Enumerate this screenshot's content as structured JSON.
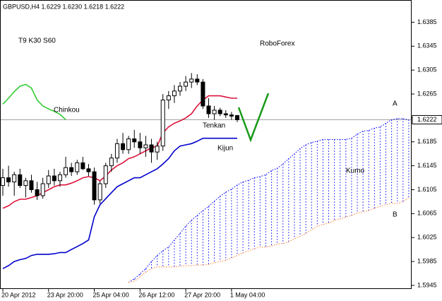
{
  "chart_data": {
    "type": "candlestick",
    "title": "GBPUSD,H4  1.6229 1.6230 1.6218 1.6222",
    "annotations": [
      "T9 K30 S60",
      "RoboForex",
      "Kumo"
    ],
    "current_price": 1.6222,
    "ylim": [
      1.5939,
      1.6421
    ],
    "yticks": [
      1.6385,
      1.6345,
      1.6305,
      1.6265,
      1.6225,
      1.6185,
      1.6145,
      1.6105,
      1.6065,
      1.6025,
      1.5985,
      1.5945
    ],
    "categories": [
      "20 Apr 2012",
      null,
      null,
      null,
      null,
      null,
      null,
      null,
      "23 Apr 20:00",
      null,
      null,
      null,
      null,
      null,
      null,
      null,
      "25 Apr 04:00",
      null,
      null,
      null,
      null,
      null,
      null,
      null,
      "26 Apr 12:00",
      null,
      null,
      null,
      null,
      null,
      null,
      null,
      "27 Apr 20:00",
      null,
      null,
      null,
      null,
      null,
      null,
      null,
      "1 May 04:00",
      null,
      null,
      null,
      null,
      null,
      null,
      null,
      null,
      null,
      null,
      null,
      null,
      null,
      null,
      null,
      null,
      null,
      null,
      null,
      null,
      null,
      null,
      null,
      null,
      null,
      null,
      null,
      null,
      null,
      null,
      null
    ],
    "bull_color": "#ffffff",
    "bear_color": "#000000",
    "open": [
      1.6112,
      1.6125,
      1.6118,
      1.613,
      1.6112,
      1.612,
      1.6105,
      1.6095,
      1.6115,
      1.6128,
      1.612,
      1.613,
      1.6142,
      1.6135,
      1.615,
      1.614,
      1.6135,
      1.6088,
      1.6115,
      1.6145,
      1.6158,
      1.6182,
      1.6172,
      1.619,
      1.6185,
      1.6175,
      1.618,
      1.6168,
      1.6178,
      1.6255,
      1.6262,
      1.627,
      1.6278,
      1.6285,
      1.629,
      1.6285,
      1.6245,
      1.6232,
      1.6238,
      1.6232,
      1.623,
      1.6229,
      null,
      null,
      null,
      null,
      null,
      null,
      null,
      null,
      null,
      null,
      null,
      null,
      null,
      null,
      null,
      null,
      null,
      null,
      null,
      null,
      null,
      null,
      null,
      null,
      null,
      null,
      null,
      null,
      null,
      null
    ],
    "high": [
      1.614,
      1.6145,
      1.6135,
      1.614,
      1.6125,
      1.613,
      1.6118,
      1.6125,
      1.6138,
      1.614,
      1.6135,
      1.616,
      1.615,
      1.6155,
      1.616,
      1.6148,
      1.6142,
      1.612,
      1.615,
      1.6165,
      1.619,
      1.62,
      1.6195,
      1.6205,
      1.62,
      1.6195,
      1.619,
      1.6185,
      1.6265,
      1.627,
      1.628,
      1.6285,
      1.6295,
      1.63,
      1.6298,
      1.629,
      1.6258,
      1.6245,
      1.6242,
      1.6238,
      1.6235,
      1.623,
      null,
      null,
      null,
      null,
      null,
      null,
      null,
      null,
      null,
      null,
      null,
      null,
      null,
      null,
      null,
      null,
      null,
      null,
      null,
      null,
      null,
      null,
      null,
      null,
      null,
      null,
      null,
      null,
      null,
      null
    ],
    "low": [
      1.6095,
      1.611,
      1.6095,
      1.6108,
      1.6092,
      1.61,
      1.6088,
      1.609,
      1.6108,
      1.6112,
      1.611,
      1.6125,
      1.6128,
      1.613,
      1.6138,
      1.6128,
      1.608,
      1.6082,
      1.6108,
      1.6135,
      1.615,
      1.6165,
      1.6165,
      1.6175,
      1.6165,
      1.616,
      1.615,
      1.6155,
      1.617,
      1.624,
      1.625,
      1.6262,
      1.627,
      1.6275,
      1.628,
      1.624,
      1.6225,
      1.6222,
      1.6228,
      1.6225,
      1.6222,
      1.6218,
      null,
      null,
      null,
      null,
      null,
      null,
      null,
      null,
      null,
      null,
      null,
      null,
      null,
      null,
      null,
      null,
      null,
      null,
      null,
      null,
      null,
      null,
      null,
      null,
      null,
      null,
      null,
      null,
      null,
      null
    ],
    "close": [
      1.6125,
      1.6118,
      1.613,
      1.6112,
      1.612,
      1.6105,
      1.6095,
      1.6115,
      1.6128,
      1.612,
      1.613,
      1.6142,
      1.6135,
      1.615,
      1.614,
      1.6135,
      1.6088,
      1.6115,
      1.6145,
      1.6158,
      1.6182,
      1.6172,
      1.619,
      1.6185,
      1.6175,
      1.618,
      1.6168,
      1.6178,
      1.6255,
      1.6262,
      1.627,
      1.6278,
      1.6285,
      1.629,
      1.6285,
      1.6245,
      1.6232,
      1.6238,
      1.6232,
      1.623,
      1.6228,
      1.6222,
      null,
      null,
      null,
      null,
      null,
      null,
      null,
      null,
      null,
      null,
      null,
      null,
      null,
      null,
      null,
      null,
      null,
      null,
      null,
      null,
      null,
      null,
      null,
      null,
      null,
      null,
      null,
      null,
      null,
      null
    ],
    "series": [
      {
        "name": "Tenkan",
        "color": "#dc143c",
        "values": [
          1.6074,
          1.6078,
          1.6085,
          1.6089,
          1.6089,
          1.6092,
          1.6095,
          1.61,
          1.6105,
          1.611,
          1.6113,
          1.6113,
          1.6116,
          1.612,
          1.6125,
          1.6127,
          1.6125,
          1.612,
          1.6128,
          1.6138,
          1.6145,
          1.615,
          1.6157,
          1.616,
          1.6165,
          1.617,
          1.6175,
          1.6178,
          1.62,
          1.621,
          1.6216,
          1.622,
          1.6225,
          1.6232,
          1.6245,
          1.6255,
          1.6262,
          1.6262,
          1.6262,
          1.626,
          1.6258,
          1.6258,
          null,
          null,
          null,
          null,
          null,
          null,
          null,
          null,
          null,
          null,
          null,
          null,
          null,
          null,
          null,
          null,
          null,
          null,
          null,
          null,
          null,
          null,
          null,
          null,
          null,
          null,
          null,
          null,
          null,
          null
        ]
      },
      {
        "name": "Kijun",
        "color": "#0000cd",
        "values": [
          1.5973,
          1.5978,
          1.5985,
          1.5988,
          1.599,
          1.5995,
          1.5997,
          1.5997,
          1.5997,
          1.5998,
          1.6,
          1.6,
          1.6005,
          1.601,
          1.6015,
          1.6021,
          1.606,
          1.608,
          1.609,
          1.61,
          1.611,
          1.6115,
          1.612,
          1.6125,
          1.6125,
          1.613,
          1.6135,
          1.614,
          1.6148,
          1.6157,
          1.617,
          1.6178,
          1.618,
          1.6182,
          1.6186,
          1.6191,
          1.6191,
          1.6191,
          1.6191,
          1.6191,
          1.6191,
          1.6191,
          null,
          null,
          null,
          null,
          null,
          null,
          null,
          null,
          null,
          null,
          null,
          null,
          null,
          null,
          null,
          null,
          null,
          null,
          null,
          null,
          null,
          null,
          null,
          null,
          null,
          null,
          null,
          null,
          null,
          null
        ]
      },
      {
        "name": "Chinkou",
        "color": "#32cd32",
        "values": [
          1.6248,
          1.6258,
          1.6269,
          1.6278,
          1.6281,
          1.6275,
          1.6255,
          1.6245,
          1.624,
          1.6236,
          1.6231,
          1.6222,
          null,
          null,
          null,
          null,
          null,
          null,
          null,
          null,
          null,
          null,
          null,
          null,
          null,
          null,
          null,
          null,
          null,
          null,
          null,
          null,
          null,
          null,
          null,
          null,
          null,
          null,
          null,
          null,
          null,
          null,
          null,
          null,
          null,
          null,
          null,
          null,
          null,
          null,
          null,
          null,
          null,
          null,
          null,
          null,
          null,
          null,
          null,
          null,
          null,
          null,
          null,
          null,
          null,
          null,
          null,
          null,
          null,
          null,
          null,
          null
        ]
      },
      {
        "name": "A",
        "color": "#0000ff",
        "dashed": true,
        "values": [
          null,
          null,
          null,
          null,
          null,
          null,
          null,
          null,
          null,
          null,
          null,
          null,
          null,
          null,
          null,
          null,
          null,
          null,
          null,
          null,
          null,
          null,
          1.595,
          1.5956,
          1.5964,
          1.5973,
          1.5985,
          1.5995,
          1.6003,
          1.6009,
          1.6021,
          1.6032,
          1.6044,
          1.6054,
          1.6062,
          1.607,
          1.6077,
          1.6086,
          1.6094,
          1.6101,
          1.6106,
          1.6113,
          1.6118,
          1.6121,
          1.6125,
          1.6127,
          1.613,
          1.6137,
          1.6141,
          1.6148,
          1.6157,
          1.6165,
          1.6174,
          1.618,
          1.6184,
          1.6186,
          1.6189,
          1.6189,
          1.6189,
          1.6189,
          1.6189,
          1.6191,
          1.6198,
          1.6203,
          1.6204,
          1.6208,
          1.621,
          1.6216,
          1.6222,
          1.6224,
          1.6224,
          1.6222
        ]
      },
      {
        "name": "B",
        "color": "#ff7f27",
        "dashed": true,
        "values": [
          null,
          null,
          null,
          null,
          null,
          null,
          null,
          null,
          null,
          null,
          null,
          null,
          null,
          null,
          null,
          null,
          null,
          null,
          null,
          null,
          null,
          null,
          1.595,
          1.5952,
          1.5959,
          1.5967,
          1.5973,
          1.5976,
          1.5976,
          1.5976,
          1.5976,
          1.5977,
          1.5978,
          1.5978,
          1.5979,
          1.5979,
          1.598,
          1.5983,
          1.5985,
          1.5987,
          1.5991,
          1.5995,
          1.5999,
          1.6003,
          1.6006,
          1.6009,
          1.6009,
          1.6011,
          1.6014,
          1.6015,
          1.6018,
          1.6023,
          1.6027,
          1.6032,
          1.6038,
          1.6044,
          1.6047,
          1.6049,
          1.6054,
          1.6056,
          1.6059,
          1.6062,
          1.6066,
          1.6068,
          1.607,
          1.6074,
          1.6077,
          1.608,
          1.6082,
          1.6082,
          1.6085,
          1.6092
        ]
      }
    ]
  }
}
